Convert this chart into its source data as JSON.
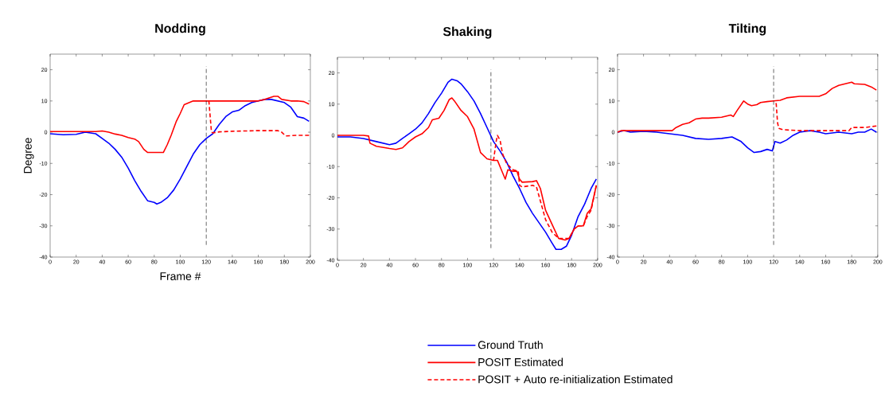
{
  "chart_data": [
    {
      "type": "line",
      "title": "Nodding",
      "xlabel": "Frame #",
      "ylabel": "Degree",
      "xlim": [
        0,
        200
      ],
      "ylim": [
        -40,
        25
      ],
      "xticks": [
        0,
        20,
        40,
        60,
        80,
        100,
        120,
        140,
        160,
        180,
        200
      ],
      "yticks": [
        -40,
        -30,
        -20,
        -10,
        0,
        10,
        20
      ],
      "ref_lines": [
        {
          "axis": "x",
          "value": 120,
          "color": "#000000",
          "line_style": "dashed"
        }
      ],
      "series": [
        {
          "color": "#0000ff",
          "line_style": "solid",
          "x": [
            0,
            10,
            20,
            27,
            35,
            40,
            45,
            50,
            55,
            60,
            65,
            70,
            75,
            80,
            82,
            85,
            90,
            95,
            100,
            105,
            110,
            115,
            120,
            125,
            130,
            135,
            140,
            145,
            150,
            155,
            160,
            165,
            170,
            175,
            180,
            185,
            190,
            195,
            199
          ],
          "values": [
            -0.5,
            -0.8,
            -0.7,
            0,
            -0.5,
            -2,
            -3.5,
            -5.5,
            -8,
            -11.5,
            -15.5,
            -19,
            -22,
            -22.5,
            -23,
            -22.5,
            -21,
            -18.5,
            -15,
            -11,
            -7,
            -4,
            -2,
            -0.5,
            2.5,
            5,
            6.5,
            7,
            8.5,
            9.5,
            10,
            10.5,
            10.5,
            10,
            9.5,
            8,
            5,
            4.5,
            3.5
          ]
        },
        {
          "color": "#ff0000",
          "line_style": "solid",
          "x": [
            0,
            20,
            35,
            40,
            45,
            50,
            55,
            60,
            65,
            68,
            72,
            75,
            80,
            87,
            90,
            93,
            97,
            100,
            103,
            107,
            110,
            120,
            140,
            160,
            165,
            172,
            175,
            178,
            185,
            190,
            195,
            199
          ],
          "values": [
            0.2,
            0.2,
            0.2,
            0.4,
            0,
            -0.6,
            -1,
            -1.7,
            -2.2,
            -3,
            -5.5,
            -6.5,
            -6.5,
            -6.5,
            -4,
            -1,
            3.5,
            6,
            8.8,
            9.5,
            10,
            10,
            10,
            10,
            10.5,
            11.5,
            11.5,
            10.5,
            10,
            10,
            9.8,
            9
          ]
        },
        {
          "color": "#ff0000",
          "line_style": "dashed",
          "x": [
            121,
            122,
            123,
            124,
            125,
            130,
            140,
            160,
            170,
            175,
            178,
            181,
            190,
            199
          ],
          "values": [
            10,
            10,
            5,
            0,
            -0.2,
            0.1,
            0.3,
            0.5,
            0.5,
            0.5,
            0,
            -1.2,
            -1,
            -1
          ]
        }
      ]
    },
    {
      "type": "line",
      "title": "Shaking",
      "xlim": [
        0,
        200
      ],
      "ylim": [
        -40,
        25
      ],
      "xticks": [
        0,
        20,
        40,
        60,
        80,
        100,
        120,
        140,
        160,
        180,
        200
      ],
      "yticks": [
        -40,
        -30,
        -20,
        -10,
        0,
        10,
        20
      ],
      "legend": "bottom",
      "ref_lines": [
        {
          "axis": "x",
          "value": 118,
          "color": "#000000",
          "line_style": "dashed"
        }
      ],
      "series": [
        {
          "name": "Ground Truth",
          "color": "#0000ff",
          "line_style": "solid",
          "x": [
            0,
            10,
            20,
            30,
            40,
            45,
            50,
            55,
            60,
            65,
            70,
            75,
            80,
            85,
            88,
            92,
            95,
            100,
            105,
            110,
            115,
            120,
            125,
            130,
            135,
            140,
            145,
            150,
            155,
            160,
            165,
            168,
            172,
            176,
            180,
            185,
            190,
            195,
            199
          ],
          "values": [
            -0.5,
            -0.5,
            -1,
            -2,
            -3,
            -2.5,
            -1,
            0.5,
            2,
            4,
            7,
            10.5,
            13.5,
            17,
            18,
            17.5,
            16.5,
            14,
            11,
            7,
            2.5,
            -2,
            -5,
            -8.5,
            -13,
            -17,
            -21.5,
            -25,
            -28,
            -31,
            -34.5,
            -36.5,
            -36.5,
            -35.5,
            -32,
            -26,
            -22,
            -17,
            -14
          ]
        },
        {
          "name": "POSIT Estimated",
          "color": "#ff0000",
          "line_style": "solid",
          "x": [
            0,
            10,
            20,
            24,
            25,
            30,
            40,
            45,
            50,
            55,
            60,
            65,
            70,
            73,
            78,
            82,
            86,
            88,
            90,
            95,
            100,
            105,
            110,
            115,
            120,
            123,
            126,
            129,
            131,
            135,
            138,
            140,
            142,
            150,
            153,
            156,
            160,
            165,
            170,
            175,
            178,
            182,
            185,
            189,
            192,
            195,
            199
          ],
          "values": [
            0,
            0,
            0,
            -0.2,
            -2.5,
            -3.5,
            -4.2,
            -4.5,
            -4,
            -2,
            -0.5,
            0.5,
            2.5,
            5,
            5.5,
            8,
            11.5,
            12,
            11,
            8,
            6,
            2,
            -5.5,
            -7.5,
            -8,
            -8,
            -11,
            -14,
            -11,
            -11.5,
            -11.5,
            -14,
            -15,
            -14.8,
            -14.5,
            -17,
            -24,
            -28.5,
            -33,
            -33.5,
            -33,
            -30,
            -29,
            -29,
            -25,
            -23.5,
            -16
          ]
        },
        {
          "name": "POSIT + Auto re-initialization Estimated",
          "color": "#ff0000",
          "line_style": "dashed",
          "x": [
            120,
            122,
            123,
            125,
            127,
            130,
            135,
            139,
            140,
            142,
            150,
            153,
            156,
            160,
            165,
            170,
            175,
            178,
            182,
            185,
            189,
            192,
            195,
            199
          ],
          "values": [
            -8,
            -2,
            0,
            -1.5,
            -6,
            -9,
            -11,
            -11.5,
            -16,
            -16.5,
            -16,
            -16.5,
            -21,
            -27,
            -31,
            -33,
            -33,
            -33,
            -30,
            -29,
            -29,
            -26,
            -24,
            -16
          ]
        }
      ]
    },
    {
      "type": "line",
      "title": "Tilting",
      "xlim": [
        0,
        200
      ],
      "ylim": [
        -40,
        25
      ],
      "xticks": [
        0,
        20,
        40,
        60,
        80,
        100,
        120,
        140,
        160,
        180,
        200
      ],
      "yticks": [
        -40,
        -30,
        -20,
        -10,
        0,
        10,
        20
      ],
      "ref_lines": [
        {
          "axis": "x",
          "value": 120,
          "color": "#000000",
          "line_style": "dashed"
        }
      ],
      "series": [
        {
          "color": "#0000ff",
          "line_style": "solid",
          "x": [
            0,
            5,
            10,
            20,
            30,
            40,
            50,
            60,
            70,
            80,
            88,
            95,
            100,
            105,
            110,
            115,
            119,
            121,
            125,
            130,
            135,
            140,
            148,
            155,
            160,
            170,
            180,
            185,
            190,
            195,
            199
          ],
          "values": [
            0,
            0.5,
            0,
            0.3,
            0,
            -0.5,
            -1,
            -2,
            -2.3,
            -2,
            -1.5,
            -3,
            -5,
            -6.5,
            -6.2,
            -5.5,
            -6,
            -3,
            -3.5,
            -2.5,
            -1,
            0,
            0.5,
            0,
            -0.5,
            0,
            -0.5,
            0,
            0,
            1,
            0
          ]
        },
        {
          "color": "#ff0000",
          "line_style": "solid",
          "x": [
            0,
            3,
            20,
            42,
            45,
            50,
            55,
            60,
            65,
            70,
            80,
            87,
            89,
            92,
            97,
            100,
            103,
            107,
            110,
            115,
            120,
            125,
            130,
            140,
            150,
            155,
            160,
            165,
            170,
            175,
            180,
            182,
            190,
            195,
            199
          ],
          "values": [
            0,
            0.5,
            0.5,
            0.5,
            1.5,
            2.5,
            3,
            4.2,
            4.5,
            4.5,
            4.8,
            5.5,
            5,
            7,
            10,
            9,
            8.5,
            8.8,
            9.5,
            9.8,
            10,
            10.2,
            11,
            11.5,
            11.5,
            11.5,
            12.3,
            14,
            15,
            15.5,
            16,
            15.5,
            15.3,
            14.5,
            13.5
          ]
        },
        {
          "color": "#ff0000",
          "line_style": "dashed",
          "x": [
            121,
            122,
            123,
            124,
            127,
            140,
            160,
            175,
            178,
            180,
            190,
            199
          ],
          "values": [
            10,
            9,
            3,
            1.2,
            0.8,
            0.5,
            0.5,
            0.5,
            0.5,
            1.5,
            1.5,
            2
          ]
        }
      ]
    }
  ]
}
